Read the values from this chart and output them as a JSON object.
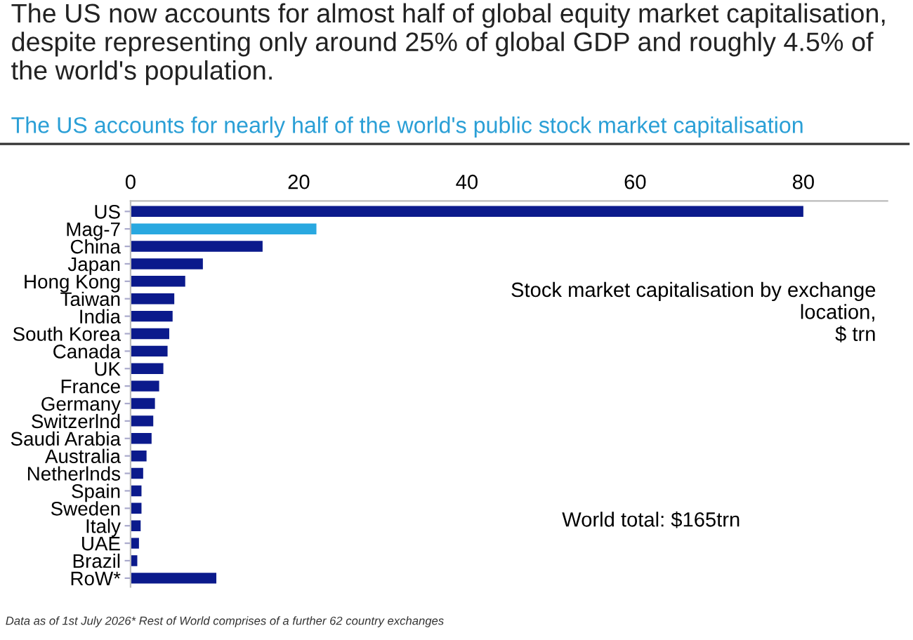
{
  "chart_data": {
    "type": "bar",
    "orientation": "horizontal",
    "title": "The US now accounts for almost half of global equity market capitalisation, despite representing only around 25% of global GDP and roughly 4.5% of the world's population.",
    "subtitle": "The US accounts for nearly half of the world's public stock market capitalisation",
    "categories": [
      "US",
      "Mag-7",
      "China",
      "Japan",
      "Hong Kong",
      "Taiwan",
      "India",
      "South Korea",
      "Canada",
      "UK",
      "France",
      "Germany",
      "Switzerlnd",
      "Saudi Arabia",
      "Australia",
      "Netherlnds",
      "Spain",
      "Sweden",
      "Italy",
      "UAE",
      "Brazil",
      "RoW*"
    ],
    "values": [
      80,
      22.1,
      15.7,
      8.6,
      6.5,
      5.2,
      5.0,
      4.6,
      4.4,
      3.9,
      3.4,
      2.9,
      2.7,
      2.5,
      1.9,
      1.5,
      1.3,
      1.3,
      1.2,
      1.0,
      0.8,
      10.2
    ],
    "colors": [
      "#0b1a8c",
      "#29a8e0",
      "#0b1a8c",
      "#0b1a8c",
      "#0b1a8c",
      "#0b1a8c",
      "#0b1a8c",
      "#0b1a8c",
      "#0b1a8c",
      "#0b1a8c",
      "#0b1a8c",
      "#0b1a8c",
      "#0b1a8c",
      "#0b1a8c",
      "#0b1a8c",
      "#0b1a8c",
      "#0b1a8c",
      "#0b1a8c",
      "#0b1a8c",
      "#0b1a8c",
      "#0b1a8c",
      "#0b1a8c"
    ],
    "xlim": [
      0,
      90
    ],
    "xticks": [
      0,
      20,
      40,
      60,
      80
    ],
    "grid": false,
    "annotations": [
      "Stock market capitalisation by exchange\nlocation,\n$ trn",
      "World total: $165trn",
      "Data as of 1st July 2026* Rest of World comprises of a further 62 country exchanges"
    ]
  }
}
